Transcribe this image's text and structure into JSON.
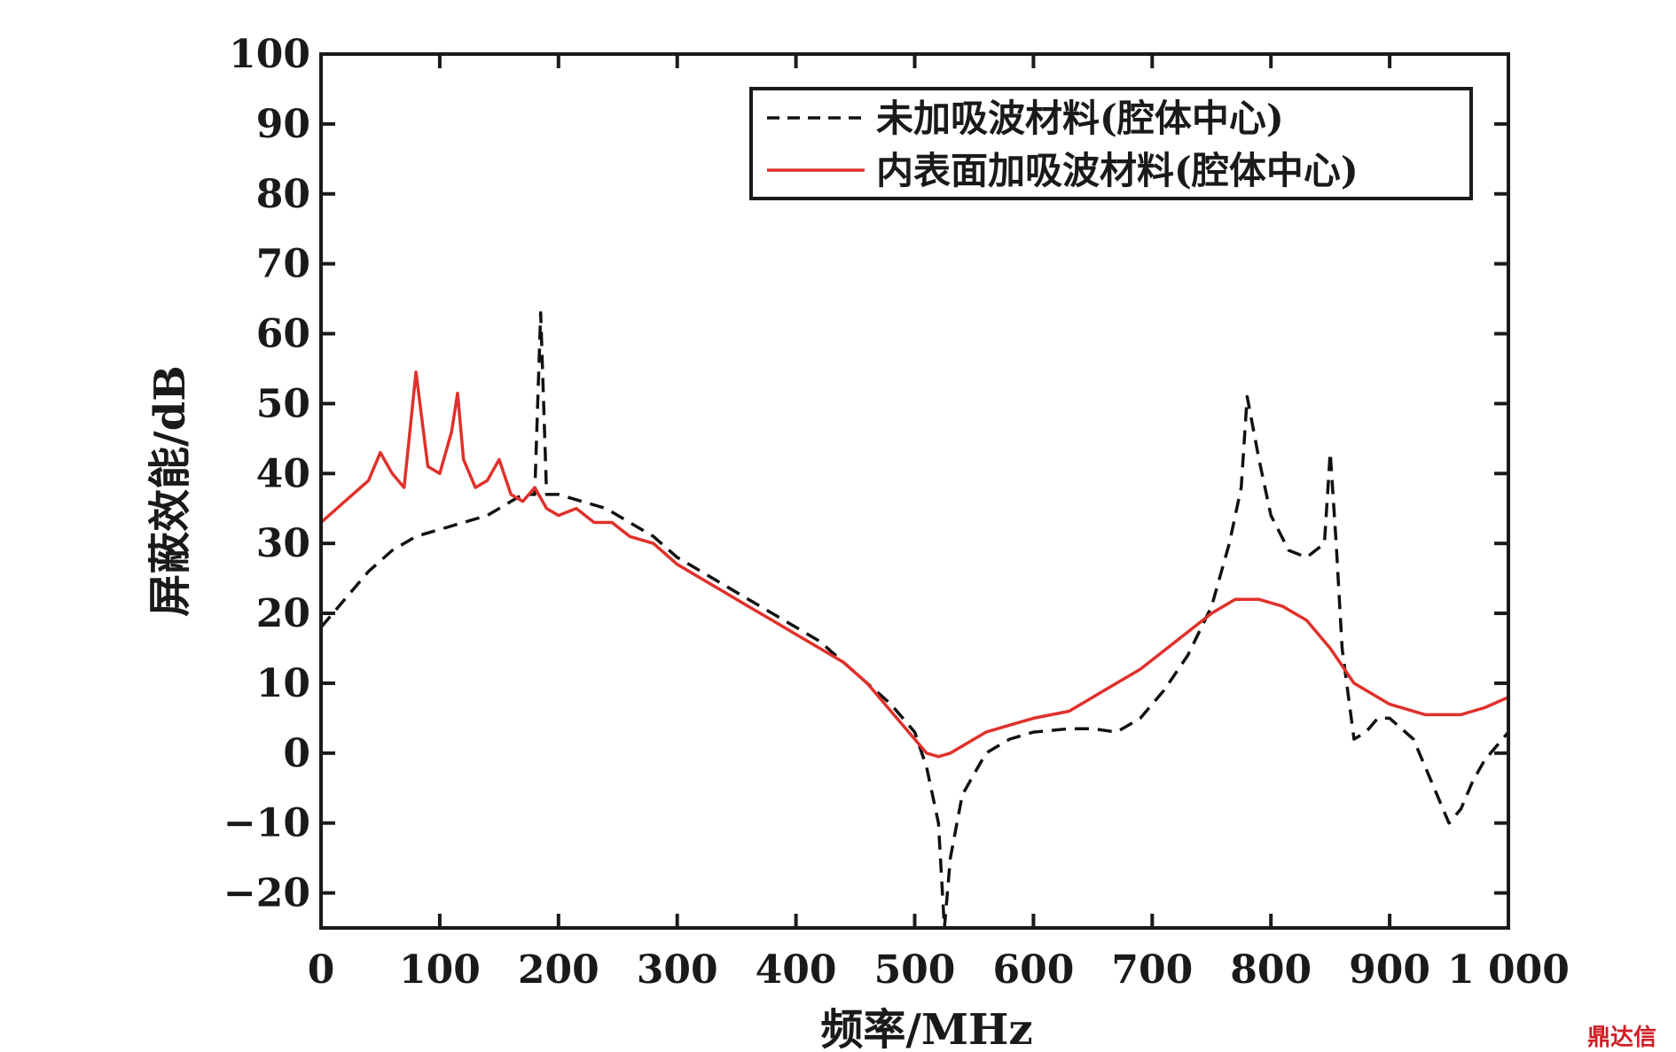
{
  "chart_data": {
    "type": "line",
    "xlabel": "频率/MHz",
    "ylabel": "屏蔽效能/dB",
    "xlim": [
      0,
      1000
    ],
    "ylim": [
      -25,
      100
    ],
    "xticks": [
      0,
      100,
      200,
      300,
      400,
      500,
      600,
      700,
      800,
      900,
      1000
    ],
    "xtick_labels": [
      "0",
      "100",
      "200",
      "300",
      "400",
      "500",
      "600",
      "700",
      "800",
      "900",
      "1 000"
    ],
    "yticks": [
      -20,
      -10,
      0,
      10,
      20,
      30,
      40,
      50,
      60,
      70,
      80,
      90,
      100
    ],
    "ytick_labels": [
      "−20",
      "−10",
      "0",
      "10",
      "20",
      "30",
      "40",
      "50",
      "60",
      "70",
      "80",
      "90",
      "100"
    ],
    "grid": false,
    "legend_position": "top-right",
    "series": [
      {
        "name": "未加吸波材料(腔体中心)",
        "color": "#111111",
        "style": "dashed",
        "x": [
          0,
          20,
          40,
          60,
          80,
          100,
          120,
          140,
          150,
          160,
          170,
          180,
          185,
          190,
          200,
          220,
          240,
          260,
          280,
          300,
          320,
          340,
          360,
          380,
          400,
          420,
          440,
          460,
          480,
          500,
          510,
          520,
          525,
          530,
          540,
          560,
          580,
          600,
          630,
          650,
          670,
          690,
          710,
          730,
          750,
          765,
          775,
          780,
          790,
          800,
          815,
          830,
          845,
          850,
          855,
          860,
          870,
          880,
          890,
          900,
          920,
          935,
          950,
          960,
          970,
          980,
          990,
          1000
        ],
        "y": [
          18,
          22,
          26,
          29,
          31,
          32,
          33,
          34,
          35,
          36,
          37,
          37,
          63,
          37,
          37,
          36,
          35,
          33,
          31,
          28,
          26,
          24,
          22,
          20,
          18,
          16,
          13,
          10,
          7,
          3,
          -2,
          -10,
          -25,
          -15,
          -6,
          0,
          2,
          3,
          3.5,
          3.5,
          3,
          5,
          9,
          14,
          21,
          30,
          38,
          51,
          42,
          34,
          29,
          28,
          30,
          43,
          30,
          15,
          2,
          3,
          5,
          5,
          2,
          -4,
          -10,
          -8,
          -4,
          -1,
          1,
          3
        ]
      },
      {
        "name": "内表面加吸波材料(腔体中心)",
        "color": "#e0302a",
        "style": "solid",
        "x": [
          0,
          20,
          40,
          50,
          60,
          70,
          80,
          90,
          100,
          110,
          115,
          120,
          130,
          140,
          150,
          160,
          170,
          180,
          190,
          200,
          215,
          230,
          245,
          260,
          280,
          300,
          320,
          340,
          360,
          380,
          400,
          420,
          440,
          460,
          480,
          500,
          510,
          520,
          530,
          540,
          560,
          580,
          600,
          630,
          660,
          690,
          720,
          750,
          770,
          790,
          810,
          830,
          850,
          870,
          900,
          930,
          960,
          980,
          1000
        ],
        "y": [
          33,
          36,
          39,
          43,
          40,
          38,
          54.5,
          41,
          40,
          46,
          51.5,
          42,
          38,
          39,
          42,
          37,
          36,
          38,
          35,
          34,
          35,
          33,
          33,
          31,
          30,
          27,
          25,
          23,
          21,
          19,
          17,
          15,
          13,
          10,
          6,
          2,
          0,
          -0.5,
          0,
          1,
          3,
          4,
          5,
          6,
          9,
          12,
          16,
          20,
          22,
          22,
          21,
          19,
          15,
          10,
          7,
          5.5,
          5.5,
          6.5,
          8
        ]
      }
    ]
  },
  "watermark": "鼎达信"
}
